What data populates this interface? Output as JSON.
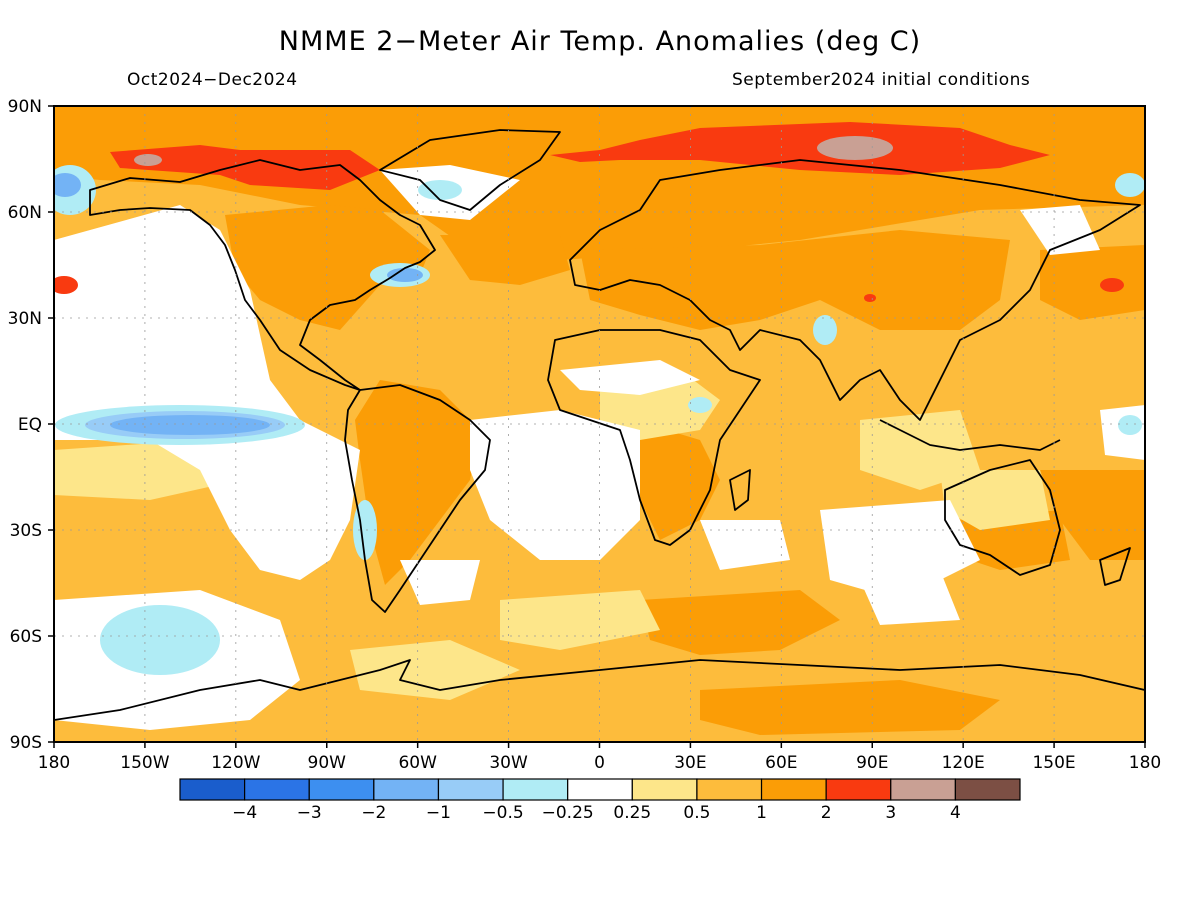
{
  "title": "NMME 2−Meter Air Temp. Anomalies (deg C)",
  "subtitle_left": "Oct2024−Dec2024",
  "subtitle_right": "September2024 initial conditions",
  "lat_labels": [
    "90N",
    "60N",
    "30N",
    "EQ",
    "30S",
    "60S",
    "90S"
  ],
  "lon_labels": [
    "180",
    "150W",
    "120W",
    "90W",
    "60W",
    "30W",
    "0",
    "30E",
    "60E",
    "90E",
    "120E",
    "150E",
    "180"
  ],
  "colorbar": {
    "colors": [
      "#1a5dcc",
      "#2b74e6",
      "#3d8ff0",
      "#73b3f5",
      "#98ccf7",
      "#b0ecf5",
      "#ffffff",
      "#fde68a",
      "#fdbc3c",
      "#fb9d06",
      "#f93a10",
      "#c9a094",
      "#7c4f44"
    ],
    "labels": [
      "−4",
      "−3",
      "−2",
      "−1",
      "−0.5",
      "−0.25",
      "0.25",
      "0.5",
      "1",
      "2",
      "3",
      "4"
    ]
  }
}
